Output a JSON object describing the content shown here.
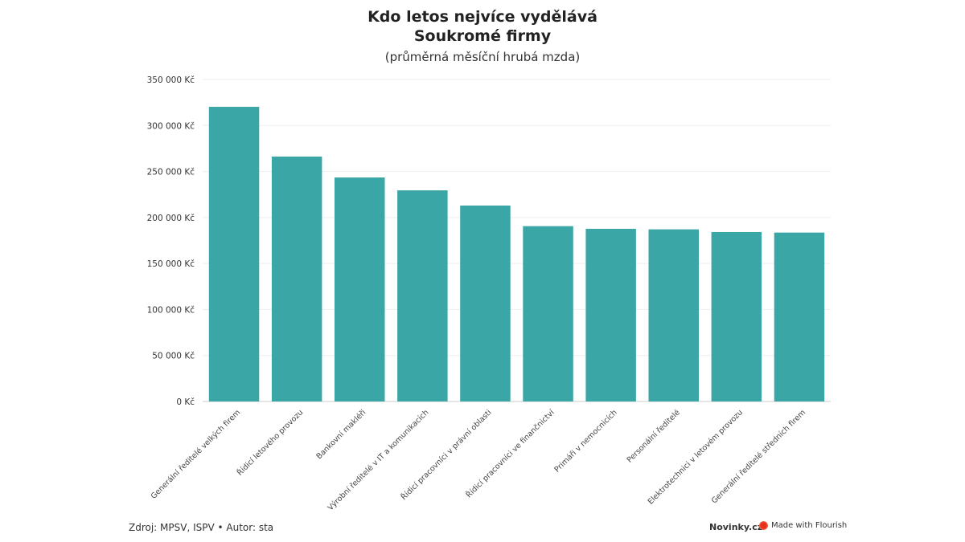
{
  "chart_data": {
    "type": "bar",
    "title": "Kdo letos nejvíce vydělává",
    "title_line2": "Soukromé firmy",
    "subtitle": "(průměrná měsíční hrubá mzda)",
    "categories": [
      "Generální ředitelé velkých firem",
      "Řídicí letového provozu",
      "Bankovní makléři",
      "Výrobní ředitelé v IT a komunikacích",
      "Řídicí pracovníci v právní oblasti",
      "Řídicí pracovníci ve finančnictví",
      "Primáři v nemocnicích",
      "Personální ředitelé",
      "Elektrotechnici v letovém provozu",
      "Generální ředitelé středních firem"
    ],
    "values": [
      320300,
      266200,
      243500,
      229500,
      213000,
      190600,
      187700,
      187100,
      184200,
      183600
    ],
    "ylim": [
      0,
      350000
    ],
    "yticks": [
      0,
      50000,
      100000,
      150000,
      200000,
      250000,
      300000,
      350000
    ],
    "ytick_labels": [
      "0 Kč",
      "50 000 Kč",
      "100 000 Kč",
      "150 000 Kč",
      "200 000 Kč",
      "250 000 Kč",
      "300 000 Kč",
      "350 000 Kč"
    ],
    "xlabel": "",
    "ylabel": "",
    "grid": true,
    "bar_color": "#3aa6a5"
  },
  "footer": {
    "source": "Zdroj: MPSV, ISPV • Autor: sta",
    "brand": "Novinky.cz",
    "flourish": "Made with Flourish"
  }
}
